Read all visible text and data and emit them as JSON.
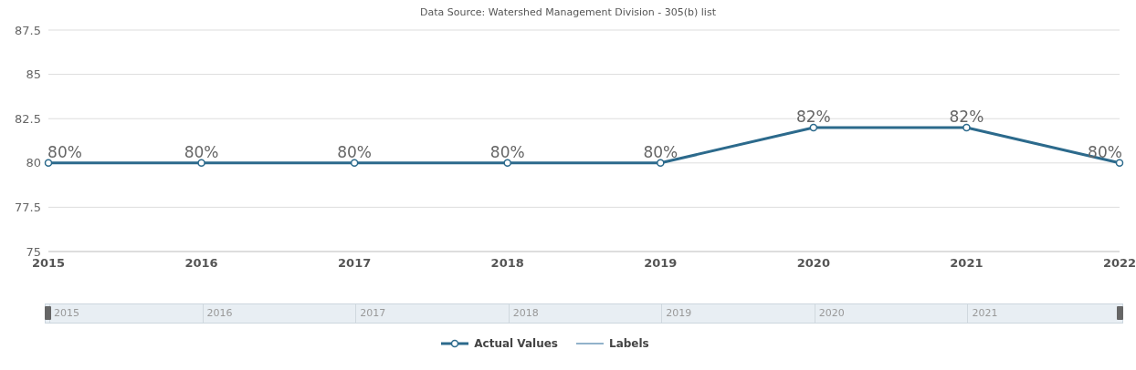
{
  "chart_data": {
    "type": "line",
    "annotations": [
      "Data Source: Watershed Management Division - 305(b) list"
    ],
    "categories": [
      "2015",
      "2016",
      "2017",
      "2018",
      "2019",
      "2020",
      "2021",
      "2022"
    ],
    "series": [
      {
        "name": "Actual Values",
        "color": "#2c6a8c",
        "values": [
          80,
          80,
          80,
          80,
          80,
          82,
          82,
          80
        ],
        "value_labels": [
          "80%",
          "80%",
          "80%",
          "80%",
          "80%",
          "82%",
          "82%",
          "80%"
        ]
      },
      {
        "name": "Labels",
        "color": "#6d98b8",
        "values": [
          null,
          null,
          null,
          null,
          null,
          null,
          null,
          null
        ]
      }
    ],
    "ylim": [
      75,
      87.5
    ],
    "yticks": [
      75,
      77.5,
      80,
      82.5,
      85,
      87.5
    ],
    "grid": "y",
    "marker": "circle",
    "line_style": "solid",
    "legend": "bottom"
  }
}
